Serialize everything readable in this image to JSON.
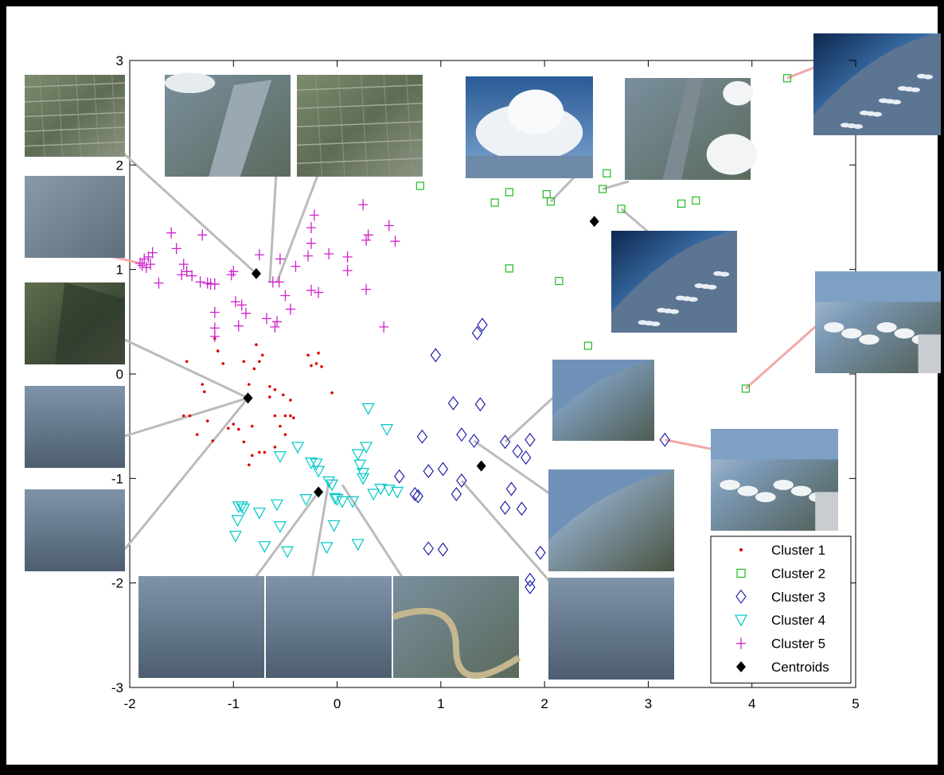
{
  "chart_data": {
    "type": "scatter",
    "xlim": [
      -2,
      5
    ],
    "ylim": [
      -3,
      3
    ],
    "x_ticks": [
      "-2",
      "-1",
      "0",
      "1",
      "2",
      "3",
      "4",
      "5"
    ],
    "y_ticks": [
      "-3",
      "-2",
      "-1",
      "0",
      "1",
      "2",
      "3"
    ],
    "grid": false,
    "legend_position": "bottom-right",
    "series": [
      {
        "name": "Cluster 1",
        "marker": "dot",
        "color": "#e00000",
        "points": [
          [
            -1.45,
            0.12
          ],
          [
            -1.48,
            -0.4
          ],
          [
            -1.42,
            -0.4
          ],
          [
            -1.3,
            -0.1
          ],
          [
            -1.28,
            -0.17
          ],
          [
            -1.35,
            -0.58
          ],
          [
            -1.25,
            -0.45
          ],
          [
            -1.2,
            -0.64
          ],
          [
            -1.1,
            0.1
          ],
          [
            -1.05,
            -0.52
          ],
          [
            -1.0,
            -0.48
          ],
          [
            -0.95,
            -0.53
          ],
          [
            -1.18,
            0.34
          ],
          [
            -1.15,
            0.22
          ],
          [
            -0.9,
            0.12
          ],
          [
            -0.85,
            -0.1
          ],
          [
            -0.82,
            -0.5
          ],
          [
            -0.9,
            -0.65
          ],
          [
            -0.8,
            0.05
          ],
          [
            -0.75,
            0.12
          ],
          [
            -0.78,
            0.28
          ],
          [
            -0.72,
            0.18
          ],
          [
            -0.75,
            -0.75
          ],
          [
            -0.82,
            -0.78
          ],
          [
            -0.85,
            -0.87
          ],
          [
            -0.7,
            -0.75
          ],
          [
            -0.6,
            -0.15
          ],
          [
            -0.65,
            -0.22
          ],
          [
            -0.55,
            -0.5
          ],
          [
            -0.5,
            -0.4
          ],
          [
            -0.5,
            -0.58
          ],
          [
            -0.45,
            -0.25
          ],
          [
            -0.45,
            -0.4
          ],
          [
            -0.42,
            -0.42
          ],
          [
            -0.28,
            0.18
          ],
          [
            -0.25,
            0.08
          ],
          [
            -0.2,
            0.1
          ],
          [
            -0.18,
            0.2
          ],
          [
            -0.15,
            0.07
          ],
          [
            -0.05,
            -0.18
          ],
          [
            -0.65,
            -0.12
          ],
          [
            -0.6,
            -0.7
          ],
          [
            -0.6,
            -0.4
          ],
          [
            -0.52,
            -0.2
          ]
        ]
      },
      {
        "name": "Cluster 2",
        "marker": "square",
        "color": "#22bb22",
        "points": [
          [
            0.8,
            1.8
          ],
          [
            1.52,
            1.64
          ],
          [
            1.66,
            1.74
          ],
          [
            1.66,
            1.01
          ],
          [
            2.02,
            1.72
          ],
          [
            2.06,
            1.65
          ],
          [
            2.14,
            0.89
          ],
          [
            2.42,
            0.27
          ],
          [
            2.56,
            1.77
          ],
          [
            2.6,
            1.92
          ],
          [
            2.74,
            1.58
          ],
          [
            3.32,
            1.63
          ],
          [
            3.46,
            1.66
          ],
          [
            3.94,
            -0.14
          ],
          [
            4.34,
            2.83
          ]
        ]
      },
      {
        "name": "Cluster 3",
        "marker": "diamond",
        "color": "#2222aa",
        "points": [
          [
            0.6,
            -0.98
          ],
          [
            0.75,
            -1.15
          ],
          [
            0.78,
            -1.17
          ],
          [
            0.82,
            -0.6
          ],
          [
            0.88,
            -0.93
          ],
          [
            0.88,
            -1.67
          ],
          [
            0.95,
            0.18
          ],
          [
            1.02,
            -0.91
          ],
          [
            1.02,
            -1.68
          ],
          [
            1.12,
            -0.28
          ],
          [
            1.15,
            -1.15
          ],
          [
            1.2,
            -1.02
          ],
          [
            1.2,
            -0.58
          ],
          [
            1.32,
            -0.64
          ],
          [
            1.35,
            0.39
          ],
          [
            1.38,
            -0.29
          ],
          [
            1.4,
            0.47
          ],
          [
            1.62,
            -0.65
          ],
          [
            1.62,
            -1.28
          ],
          [
            1.68,
            -1.1
          ],
          [
            1.74,
            -0.74
          ],
          [
            1.78,
            -1.29
          ],
          [
            1.82,
            -0.8
          ],
          [
            1.86,
            -0.63
          ],
          [
            1.86,
            -1.97
          ],
          [
            1.86,
            -2.04
          ],
          [
            1.96,
            -1.71
          ],
          [
            3.16,
            -0.63
          ]
        ]
      },
      {
        "name": "Cluster 4",
        "marker": "triangle-down",
        "color": "#00c8c8",
        "points": [
          [
            -0.98,
            -1.55
          ],
          [
            -0.96,
            -1.4
          ],
          [
            -0.95,
            -1.27
          ],
          [
            -0.92,
            -1.27
          ],
          [
            -0.9,
            -1.29
          ],
          [
            -0.75,
            -1.33
          ],
          [
            -0.7,
            -1.65
          ],
          [
            -0.58,
            -1.25
          ],
          [
            -0.55,
            -1.46
          ],
          [
            -0.55,
            -0.79
          ],
          [
            -0.48,
            -1.7
          ],
          [
            -0.38,
            -0.7
          ],
          [
            -0.3,
            -1.2
          ],
          [
            -0.25,
            -0.85
          ],
          [
            -0.2,
            -0.86
          ],
          [
            -0.18,
            -0.93
          ],
          [
            -0.1,
            -1.66
          ],
          [
            -0.08,
            -1.03
          ],
          [
            -0.05,
            -1.06
          ],
          [
            -0.03,
            -1.45
          ],
          [
            -0.02,
            -1.19
          ],
          [
            0.0,
            -1.2
          ],
          [
            0.05,
            -1.22
          ],
          [
            0.15,
            -1.22
          ],
          [
            0.2,
            -0.77
          ],
          [
            0.2,
            -1.63
          ],
          [
            0.22,
            -0.87
          ],
          [
            0.25,
            -0.95
          ],
          [
            0.25,
            -1.0
          ],
          [
            0.28,
            -0.7
          ],
          [
            0.3,
            -0.33
          ],
          [
            0.35,
            -1.15
          ],
          [
            0.42,
            -1.1
          ],
          [
            0.48,
            -0.53
          ],
          [
            0.5,
            -1.11
          ],
          [
            0.58,
            -1.13
          ]
        ]
      },
      {
        "name": "Cluster 5",
        "marker": "plus",
        "color": "#cc22cc",
        "points": [
          [
            -1.9,
            1.06
          ],
          [
            -1.88,
            1.04
          ],
          [
            -1.86,
            1.1
          ],
          [
            -1.84,
            1.02
          ],
          [
            -1.82,
            1.12
          ],
          [
            -1.8,
            1.05
          ],
          [
            -1.78,
            1.16
          ],
          [
            -1.72,
            0.87
          ],
          [
            -1.6,
            1.35
          ],
          [
            -1.55,
            1.2
          ],
          [
            -1.5,
            0.95
          ],
          [
            -1.48,
            1.05
          ],
          [
            -1.45,
            0.98
          ],
          [
            -1.4,
            0.94
          ],
          [
            -1.32,
            0.88
          ],
          [
            -1.3,
            1.33
          ],
          [
            -1.25,
            0.87
          ],
          [
            -1.22,
            0.86
          ],
          [
            -1.18,
            0.86
          ],
          [
            -1.18,
            0.59
          ],
          [
            -1.18,
            0.44
          ],
          [
            -1.18,
            0.36
          ],
          [
            -1.02,
            0.95
          ],
          [
            -1.0,
            0.98
          ],
          [
            -0.98,
            0.69
          ],
          [
            -0.95,
            0.46
          ],
          [
            -0.92,
            0.66
          ],
          [
            -0.88,
            0.58
          ],
          [
            -0.75,
            1.14
          ],
          [
            -0.68,
            0.53
          ],
          [
            -0.62,
            0.88
          ],
          [
            -0.6,
            0.45
          ],
          [
            -0.58,
            0.5
          ],
          [
            -0.56,
            0.88
          ],
          [
            -0.55,
            1.1
          ],
          [
            -0.5,
            0.75
          ],
          [
            -0.45,
            0.62
          ],
          [
            -0.4,
            1.03
          ],
          [
            -0.28,
            1.13
          ],
          [
            -0.25,
            1.25
          ],
          [
            -0.25,
            0.8
          ],
          [
            -0.25,
            1.4
          ],
          [
            -0.22,
            1.52
          ],
          [
            -0.18,
            0.78
          ],
          [
            -0.08,
            1.15
          ],
          [
            0.1,
            0.99
          ],
          [
            0.1,
            1.12
          ],
          [
            0.25,
            1.62
          ],
          [
            0.28,
            0.81
          ],
          [
            0.28,
            1.28
          ],
          [
            0.3,
            1.33
          ],
          [
            0.45,
            0.45
          ],
          [
            0.5,
            1.42
          ],
          [
            0.56,
            1.27
          ]
        ]
      },
      {
        "name": "Centroids",
        "marker": "filled-diamond",
        "color": "#000000",
        "points": [
          [
            -0.78,
            0.96
          ],
          [
            -0.86,
            -0.23
          ],
          [
            -0.18,
            -1.13
          ],
          [
            1.39,
            -0.88
          ],
          [
            2.48,
            1.46
          ]
        ]
      }
    ]
  }
}
